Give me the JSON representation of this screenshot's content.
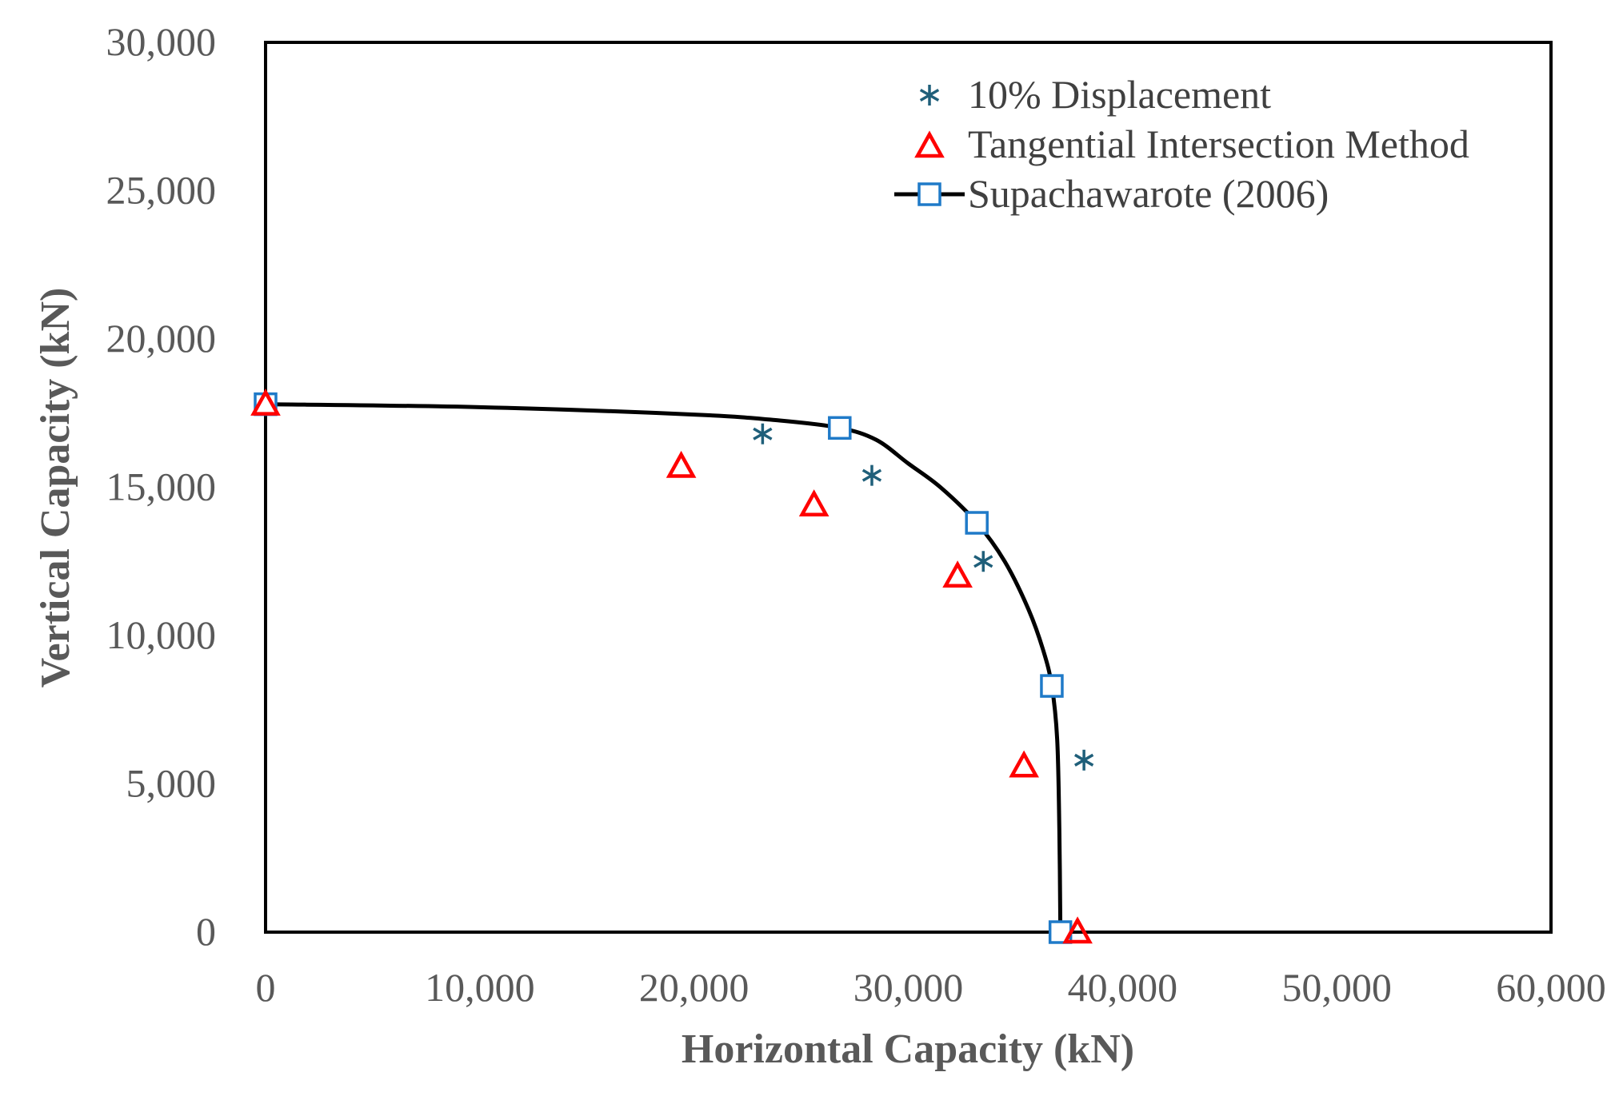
{
  "chart_data": {
    "type": "scatter",
    "title": "",
    "xlabel": "Horizontal Capacity (kN)",
    "ylabel": "Vertical Capacity (kN)",
    "xlim": [
      0,
      60000
    ],
    "ylim": [
      0,
      30000
    ],
    "x_ticks": [
      0,
      10000,
      20000,
      30000,
      40000,
      50000,
      60000
    ],
    "y_ticks": [
      0,
      5000,
      10000,
      15000,
      20000,
      25000,
      30000
    ],
    "x_tick_labels": [
      "0",
      "10,000",
      "20,000",
      "30,000",
      "40,000",
      "50,000",
      "60,000"
    ],
    "y_tick_labels": [
      "0",
      "5,000",
      "10,000",
      "15,000",
      "20,000",
      "25,000",
      "30,000"
    ],
    "grid": false,
    "legend_position": "top-right",
    "series": [
      {
        "name": "10% Displacement",
        "marker": "asterisk",
        "color": "#1f5f7a",
        "x": [
          23200,
          28300,
          33500,
          38200
        ],
        "y": [
          16800,
          15400,
          12500,
          5800
        ]
      },
      {
        "name": "Tangential Intersection Method",
        "marker": "triangle",
        "color": "#ff0000",
        "x": [
          0,
          19400,
          25600,
          32300,
          35400,
          37900
        ],
        "y": [
          17800,
          15700,
          14400,
          12000,
          5600,
          0
        ]
      },
      {
        "name": "Supachawarote (2006)",
        "marker": "square",
        "line": true,
        "color": "#1f7ac8",
        "line_color": "#000000",
        "x": [
          0,
          26800,
          33200,
          36700,
          37100
        ],
        "y": [
          17800,
          17000,
          13800,
          8300,
          0
        ],
        "curve_x": [
          0,
          10000,
          20000,
          24000,
          26800,
          28500,
          30000,
          31500,
          33200,
          34500,
          35600,
          36300,
          36700,
          36950,
          37050,
          37100
        ],
        "curve_y": [
          17800,
          17700,
          17450,
          17250,
          17000,
          16600,
          15800,
          15000,
          13800,
          12500,
          10900,
          9500,
          8300,
          6500,
          3500,
          0
        ]
      }
    ]
  }
}
